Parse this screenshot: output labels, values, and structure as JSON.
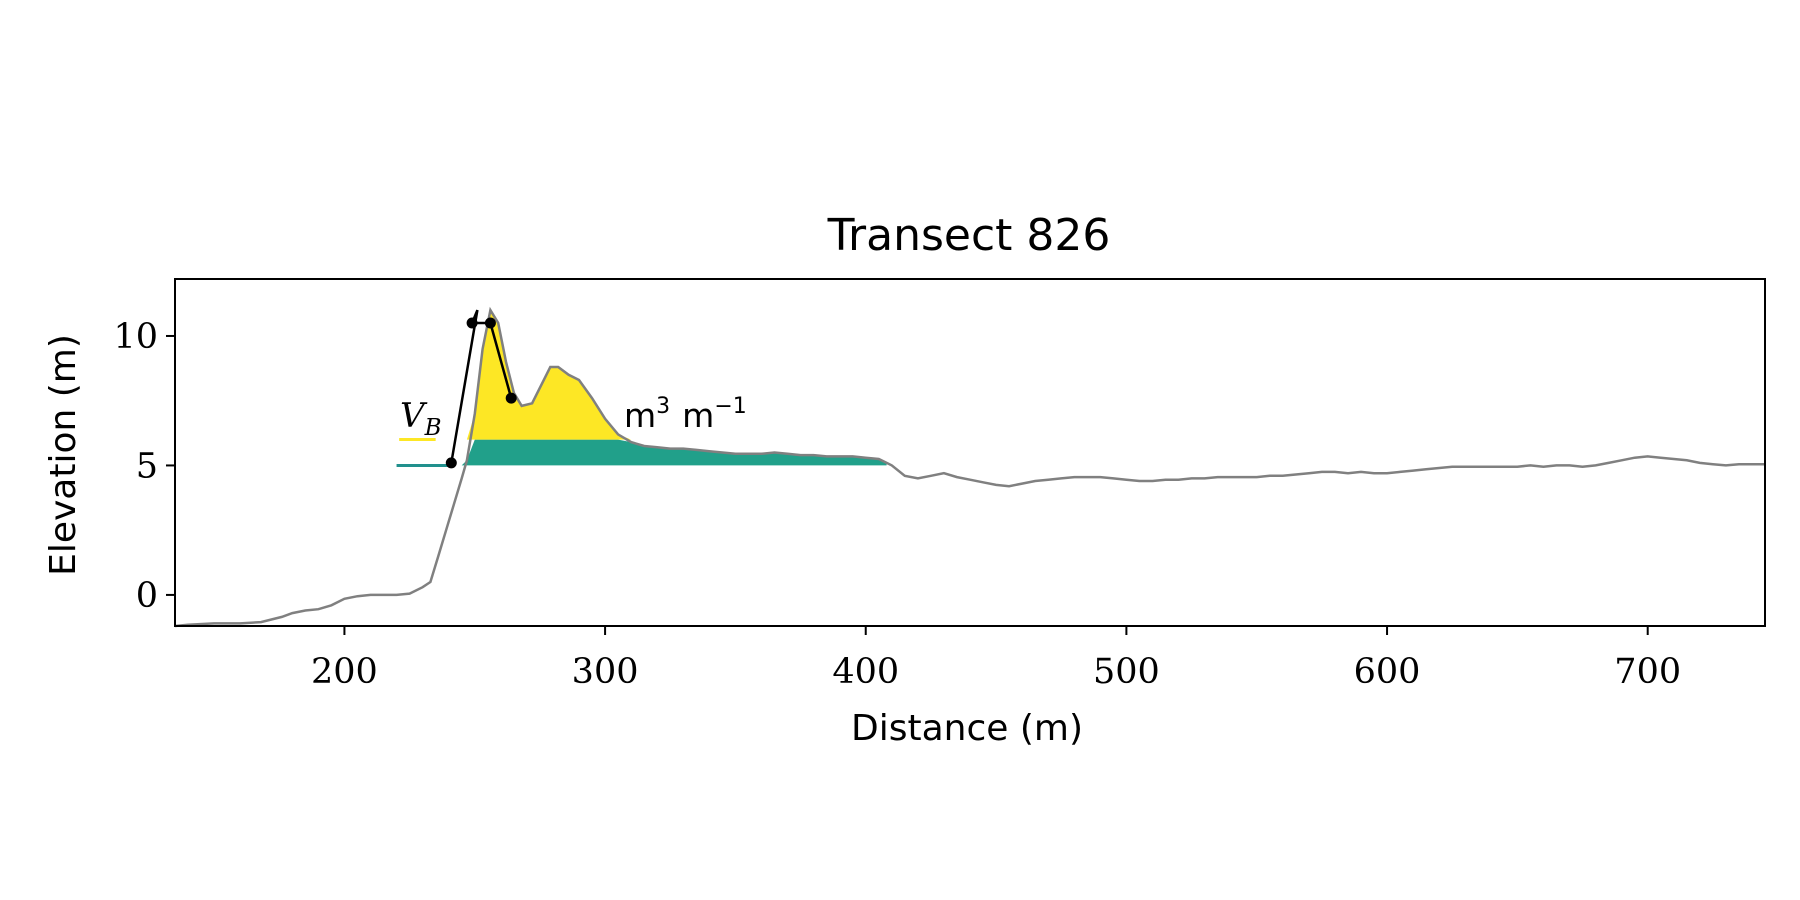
{
  "chart_data": {
    "type": "area",
    "title": "Transect 826",
    "xlabel": "Distance (m)",
    "ylabel": "Elevation (m)",
    "xlim": [
      135,
      745
    ],
    "ylim": [
      -1.2,
      12.2
    ],
    "xticks": [
      200,
      300,
      400,
      500,
      600,
      700
    ],
    "yticks": [
      0,
      5,
      10
    ],
    "grid": false,
    "colors": {
      "profile": "#808080",
      "dune_fill": "#fde725",
      "base_fill": "#21a08a",
      "base_line": "#21908d",
      "dune_line": "#000000",
      "marker": "#000000"
    },
    "series": [
      {
        "values": [
          [
            135,
            -1.2
          ],
          [
            140,
            -1.15
          ],
          [
            150,
            -1.1
          ],
          [
            160,
            -1.1
          ],
          [
            168,
            -1.05
          ],
          [
            172,
            -0.95
          ],
          [
            176,
            -0.85
          ],
          [
            180,
            -0.7
          ],
          [
            185,
            -0.6
          ],
          [
            190,
            -0.55
          ],
          [
            195,
            -0.4
          ],
          [
            200,
            -0.15
          ],
          [
            205,
            -0.05
          ],
          [
            210,
            0.0
          ],
          [
            215,
            0.0
          ],
          [
            220,
            0.0
          ],
          [
            225,
            0.05
          ],
          [
            230,
            0.3
          ],
          [
            233,
            0.5
          ],
          [
            236,
            1.5
          ],
          [
            239,
            2.5
          ],
          [
            242,
            3.5
          ],
          [
            245,
            4.5
          ],
          [
            247,
            5.2
          ],
          [
            250,
            7.0
          ],
          [
            253,
            9.5
          ],
          [
            256,
            11.0
          ],
          [
            259,
            10.5
          ],
          [
            262,
            9.0
          ],
          [
            265,
            7.8
          ],
          [
            268,
            7.3
          ],
          [
            272,
            7.4
          ],
          [
            276,
            8.2
          ],
          [
            279,
            8.8
          ],
          [
            282,
            8.8
          ],
          [
            286,
            8.5
          ],
          [
            290,
            8.3
          ],
          [
            295,
            7.6
          ],
          [
            300,
            6.8
          ],
          [
            305,
            6.2
          ],
          [
            310,
            5.9
          ],
          [
            315,
            5.75
          ],
          [
            320,
            5.7
          ],
          [
            325,
            5.65
          ],
          [
            330,
            5.65
          ],
          [
            335,
            5.6
          ],
          [
            340,
            5.55
          ],
          [
            345,
            5.5
          ],
          [
            350,
            5.45
          ],
          [
            355,
            5.45
          ],
          [
            360,
            5.45
          ],
          [
            365,
            5.5
          ],
          [
            370,
            5.45
          ],
          [
            375,
            5.4
          ],
          [
            380,
            5.4
          ],
          [
            385,
            5.35
          ],
          [
            390,
            5.35
          ],
          [
            395,
            5.35
          ],
          [
            400,
            5.3
          ],
          [
            405,
            5.25
          ],
          [
            410,
            5.0
          ],
          [
            415,
            4.6
          ],
          [
            420,
            4.5
          ],
          [
            425,
            4.6
          ],
          [
            430,
            4.7
          ],
          [
            435,
            4.55
          ],
          [
            440,
            4.45
          ],
          [
            445,
            4.35
          ],
          [
            450,
            4.25
          ],
          [
            455,
            4.2
          ],
          [
            460,
            4.3
          ],
          [
            465,
            4.4
          ],
          [
            470,
            4.45
          ],
          [
            475,
            4.5
          ],
          [
            480,
            4.55
          ],
          [
            485,
            4.55
          ],
          [
            490,
            4.55
          ],
          [
            495,
            4.5
          ],
          [
            500,
            4.45
          ],
          [
            505,
            4.4
          ],
          [
            510,
            4.4
          ],
          [
            515,
            4.45
          ],
          [
            520,
            4.45
          ],
          [
            525,
            4.5
          ],
          [
            530,
            4.5
          ],
          [
            535,
            4.55
          ],
          [
            540,
            4.55
          ],
          [
            545,
            4.55
          ],
          [
            550,
            4.55
          ],
          [
            555,
            4.6
          ],
          [
            560,
            4.6
          ],
          [
            565,
            4.65
          ],
          [
            570,
            4.7
          ],
          [
            575,
            4.75
          ],
          [
            580,
            4.75
          ],
          [
            585,
            4.7
          ],
          [
            590,
            4.75
          ],
          [
            595,
            4.7
          ],
          [
            600,
            4.7
          ],
          [
            605,
            4.75
          ],
          [
            610,
            4.8
          ],
          [
            615,
            4.85
          ],
          [
            620,
            4.9
          ],
          [
            625,
            4.95
          ],
          [
            630,
            4.95
          ],
          [
            635,
            4.95
          ],
          [
            640,
            4.95
          ],
          [
            645,
            4.95
          ],
          [
            650,
            4.95
          ],
          [
            655,
            5.0
          ],
          [
            660,
            4.95
          ],
          [
            665,
            5.0
          ],
          [
            670,
            5.0
          ],
          [
            675,
            4.95
          ],
          [
            680,
            5.0
          ],
          [
            685,
            5.1
          ],
          [
            690,
            5.2
          ],
          [
            695,
            5.3
          ],
          [
            700,
            5.35
          ],
          [
            705,
            5.3
          ],
          [
            710,
            5.25
          ],
          [
            715,
            5.2
          ],
          [
            720,
            5.1
          ],
          [
            725,
            5.05
          ],
          [
            730,
            5.0
          ],
          [
            735,
            5.05
          ],
          [
            740,
            5.05
          ],
          [
            745,
            5.05
          ]
        ]
      },
      {
        "values": [
          [
            241,
            5.1
          ],
          [
            249,
            10.5
          ],
          [
            256,
            10.5
          ],
          [
            264,
            7.6
          ]
        ]
      }
    ],
    "fill_regions": {
      "base_level": 5.0,
      "dune_level": 6.0,
      "base_fill_x": [
        241,
        408
      ],
      "dune_fill_x": [
        241,
        310
      ]
    },
    "reference_lines": [
      {
        "y": 5.0,
        "x": [
          220,
          241
        ]
      },
      {
        "y": 6.0,
        "x": [
          221,
          235
        ]
      }
    ],
    "annotation": {
      "var": "V",
      "sub": "B",
      "unit_1": "m",
      "exp_1": "3",
      "unit_2": "m",
      "exp_2": "−1"
    }
  }
}
